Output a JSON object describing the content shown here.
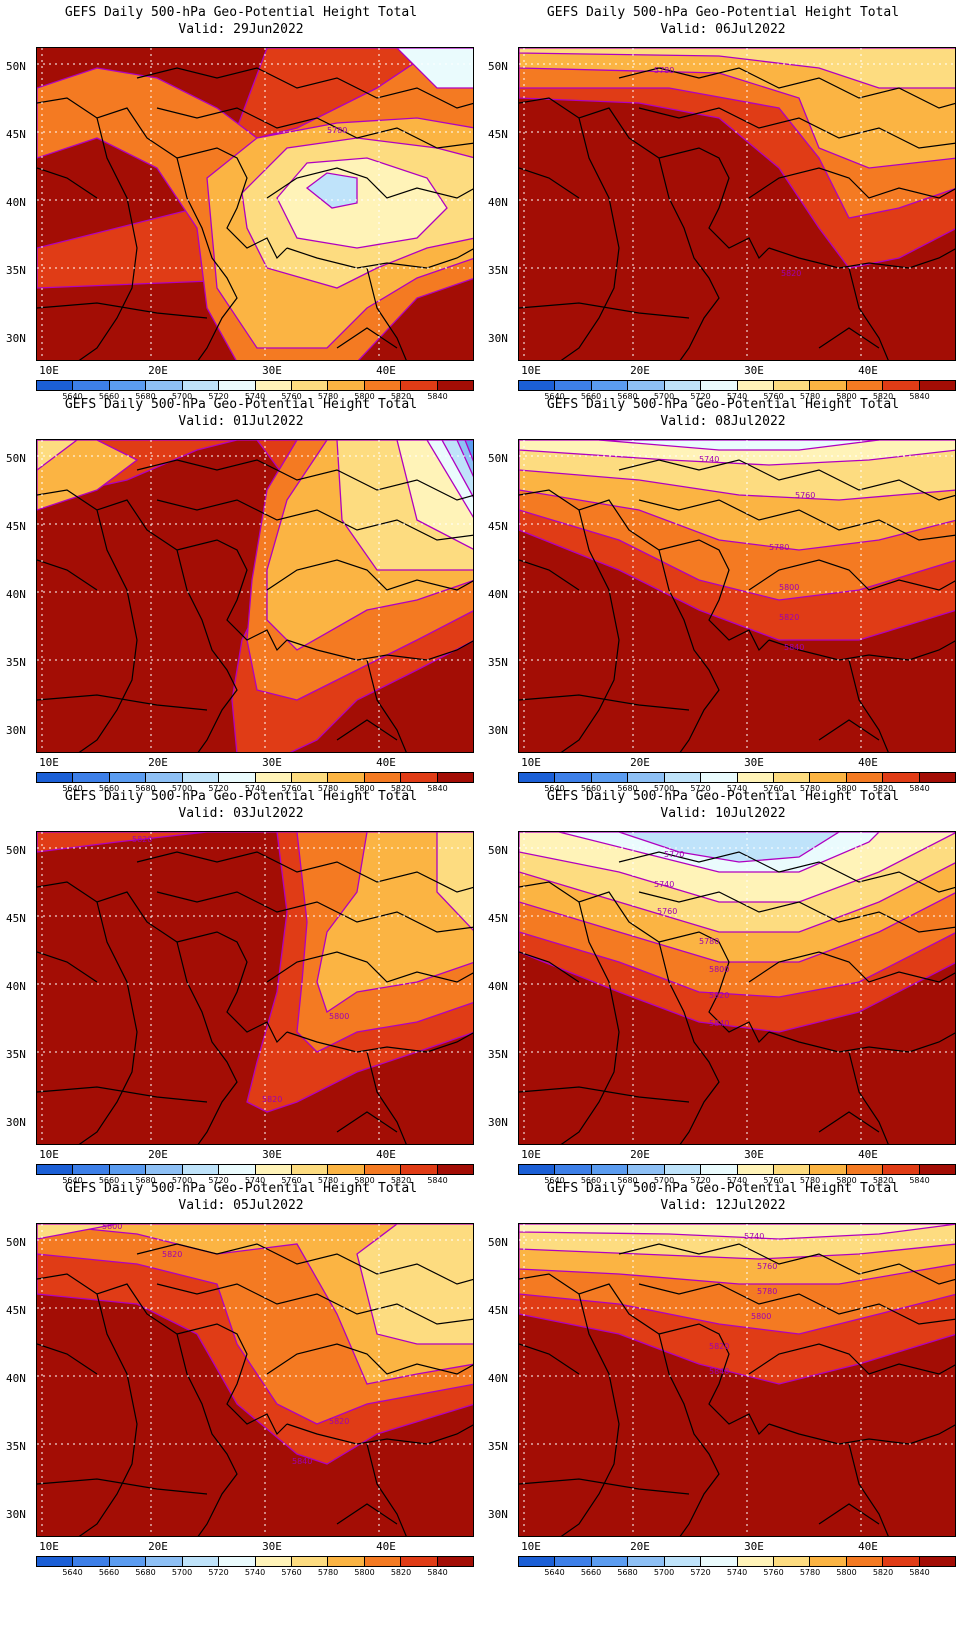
{
  "title": "GEFS Daily 500-hPa Geo-Potential Height Total",
  "y_labels": [
    "50N",
    "45N",
    "40N",
    "35N",
    "30N"
  ],
  "x_labels": [
    "10E",
    "20E",
    "30E",
    "40E"
  ],
  "colorbar": {
    "labels": [
      "5640",
      "5660",
      "5680",
      "5700",
      "5720",
      "5740",
      "5760",
      "5780",
      "5800",
      "5820",
      "5840"
    ],
    "colors": [
      "#1b5fd6",
      "#3d7fe8",
      "#5b9cf0",
      "#8ec0f5",
      "#bfe3fa",
      "#eafbfd",
      "#fff3b8",
      "#fddc80",
      "#fbb443",
      "#f47a22",
      "#e03c16",
      "#a30d05"
    ]
  },
  "panels": [
    {
      "valid": "Valid: 29Jun2022",
      "labels": [
        "5780"
      ]
    },
    {
      "valid": "Valid: 06Jul2022",
      "labels": [
        "5780",
        "5820"
      ]
    },
    {
      "valid": "Valid: 01Jul2022",
      "labels": []
    },
    {
      "valid": "Valid: 08Jul2022",
      "labels": [
        "5740",
        "5760",
        "5780",
        "5800",
        "5820",
        "5840"
      ]
    },
    {
      "valid": "Valid: 03Jul2022",
      "labels": [
        "5820",
        "5800",
        "5820"
      ]
    },
    {
      "valid": "Valid: 10Jul2022",
      "labels": [
        "5720",
        "5740",
        "5760",
        "5780",
        "5800",
        "5820",
        "5840"
      ]
    },
    {
      "valid": "Valid: 05Jul2022",
      "labels": [
        "5800",
        "5820",
        "5820",
        "5840"
      ]
    },
    {
      "valid": "Valid: 12Jul2022",
      "labels": [
        "5740",
        "5760",
        "5780",
        "5800",
        "5820",
        "5840"
      ]
    }
  ]
}
